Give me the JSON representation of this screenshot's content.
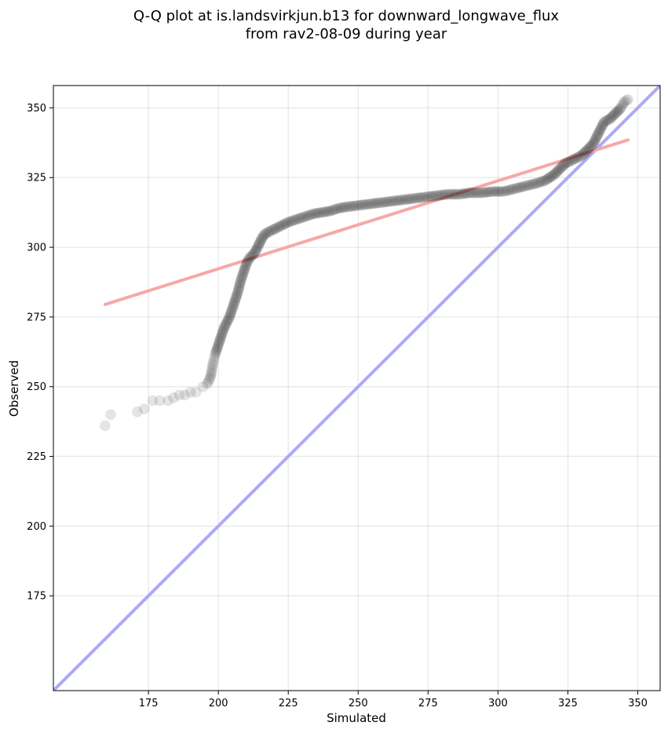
{
  "chart_data": {
    "type": "scatter",
    "title_lines": [
      "Q-Q plot at is.landsvirkjun.b13 for downward_longwave_flux",
      "from rav2-08-09 during year"
    ],
    "xlabel": "Simulated",
    "ylabel": "Observed",
    "xlim": [
      141,
      358
    ],
    "ylim": [
      141,
      358
    ],
    "xticks": [
      175,
      200,
      225,
      250,
      275,
      300,
      325,
      350
    ],
    "yticks": [
      175,
      200,
      225,
      250,
      275,
      300,
      325,
      350
    ],
    "grid": true,
    "points_color": "#000000",
    "fit_line": {
      "x": [
        159.5,
        346.5
      ],
      "y": [
        279.5,
        338.5
      ],
      "color": "#f6a8a8"
    },
    "identity_line": {
      "color": "#aaaaf8"
    },
    "points_outline": [
      [
        159.5,
        236
      ],
      [
        161.5,
        240
      ],
      [
        171,
        241
      ],
      [
        173.5,
        242
      ],
      [
        176.5,
        245
      ],
      [
        179,
        245
      ],
      [
        182,
        245
      ],
      [
        184,
        246
      ],
      [
        186,
        247
      ],
      [
        188,
        247
      ],
      [
        190,
        248
      ],
      [
        192,
        248
      ],
      [
        194.5,
        250
      ],
      [
        196,
        251
      ],
      [
        197,
        253
      ],
      [
        197.5,
        255
      ],
      [
        198,
        258
      ],
      [
        199,
        262
      ],
      [
        200,
        265
      ],
      [
        201,
        268
      ],
      [
        202,
        271
      ],
      [
        203,
        273
      ],
      [
        204,
        275
      ],
      [
        205,
        278
      ],
      [
        206,
        281
      ],
      [
        207,
        284
      ],
      [
        208,
        288
      ],
      [
        209,
        291
      ],
      [
        210,
        294
      ],
      [
        211,
        296
      ],
      [
        212,
        297
      ],
      [
        213,
        298
      ],
      [
        214,
        300
      ],
      [
        215,
        302
      ],
      [
        216,
        304
      ],
      [
        217,
        305
      ],
      [
        219,
        306
      ],
      [
        221,
        307
      ],
      [
        223,
        308
      ],
      [
        225,
        309
      ],
      [
        228,
        310
      ],
      [
        231,
        311
      ],
      [
        234,
        312
      ],
      [
        237,
        312.5
      ],
      [
        240,
        313
      ],
      [
        243,
        314
      ],
      [
        246,
        314.5
      ],
      [
        250,
        315
      ],
      [
        254,
        315.5
      ],
      [
        258,
        316
      ],
      [
        262,
        316.5
      ],
      [
        266,
        317
      ],
      [
        270,
        317.5
      ],
      [
        274,
        318
      ],
      [
        278,
        318.5
      ],
      [
        282,
        319
      ],
      [
        286,
        319
      ],
      [
        290,
        319.5
      ],
      [
        294,
        319.5
      ],
      [
        298,
        320
      ],
      [
        302,
        320
      ],
      [
        306,
        321
      ],
      [
        310,
        322
      ],
      [
        314,
        323
      ],
      [
        317,
        324
      ],
      [
        320,
        326
      ],
      [
        322,
        328
      ],
      [
        324,
        330
      ],
      [
        326,
        331
      ],
      [
        328,
        332
      ],
      [
        330,
        333
      ],
      [
        332,
        335
      ],
      [
        334,
        337
      ],
      [
        335,
        339
      ],
      [
        336,
        341
      ],
      [
        337,
        343
      ],
      [
        338,
        345
      ],
      [
        340,
        346
      ],
      [
        342,
        348
      ],
      [
        344,
        350
      ],
      [
        345,
        352
      ],
      [
        346.5,
        353
      ]
    ]
  }
}
